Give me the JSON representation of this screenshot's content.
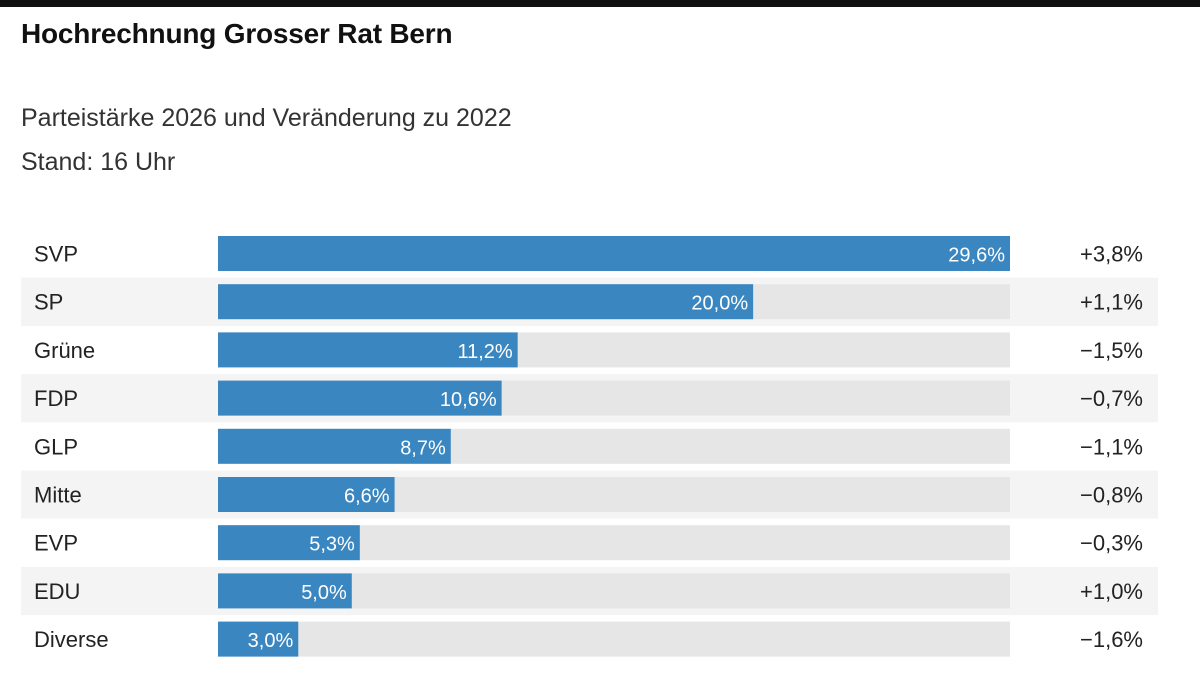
{
  "header": {
    "title": "Hochrechnung Grosser Rat Bern",
    "subtitle_line1": "Parteistärke 2026 und Veränderung zu 2022",
    "subtitle_line2": "Stand: 16 Uhr"
  },
  "chart_data": {
    "type": "bar",
    "orientation": "horizontal",
    "title": "Hochrechnung Grosser Rat Bern",
    "subtitle": "Parteistärke 2026 und Veränderung zu 2022",
    "categories": [
      "SVP",
      "SP",
      "Grüne",
      "FDP",
      "GLP",
      "Mitte",
      "EVP",
      "EDU",
      "Diverse"
    ],
    "values": [
      29.6,
      20.0,
      11.2,
      10.6,
      8.7,
      6.6,
      5.3,
      5.0,
      3.0
    ],
    "value_labels": [
      "29,6%",
      "20,0%",
      "11,2%",
      "10,6%",
      "8,7%",
      "6,6%",
      "5,3%",
      "5,0%",
      "3,0%"
    ],
    "change_labels": [
      "+3,8%",
      "+1,1%",
      "−1,5%",
      "−0,7%",
      "−1,1%",
      "−0,8%",
      "−0,3%",
      "+1,0%",
      "−1,6%"
    ],
    "changes": [
      3.8,
      1.1,
      -1.5,
      -0.7,
      -1.1,
      -0.8,
      -0.3,
      1.0,
      -1.6
    ],
    "xlim": [
      0,
      29.6
    ],
    "grid": false,
    "legend": "none",
    "colors": {
      "bar": "#3a86c0",
      "track": "#e6e6e6",
      "row_band": "#f4f4f4"
    }
  }
}
